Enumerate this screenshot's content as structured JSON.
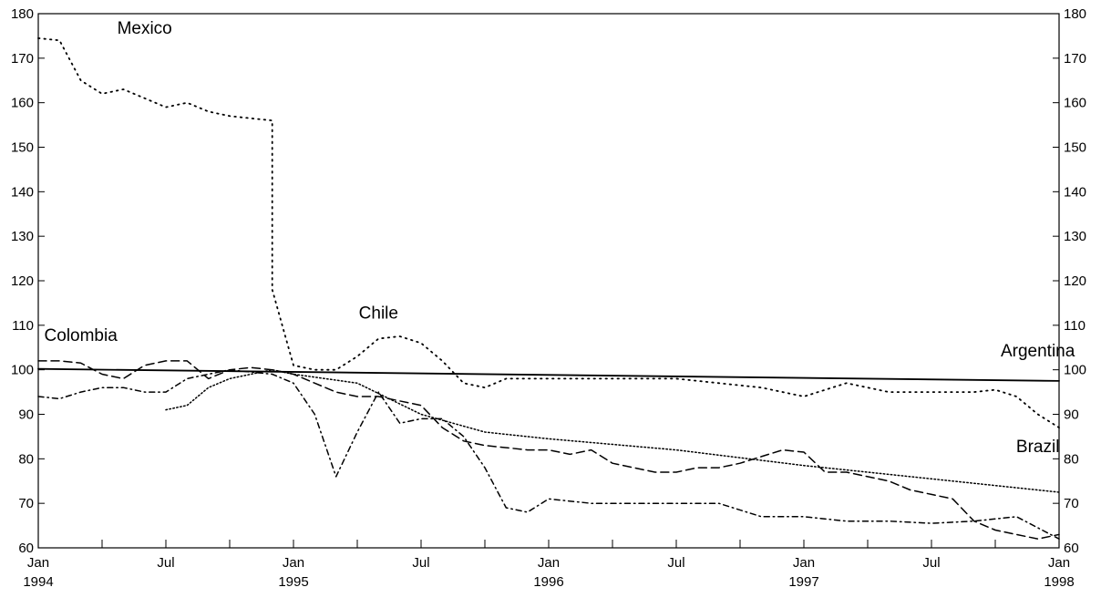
{
  "chart_data": {
    "type": "line",
    "title": "",
    "xlabel": "",
    "ylabel": "",
    "ylim": [
      60,
      180
    ],
    "xlim": [
      "1994-01",
      "1998-01"
    ],
    "yticks": [
      60,
      70,
      80,
      90,
      100,
      110,
      120,
      130,
      140,
      150,
      160,
      170,
      180
    ],
    "ytick_labels": [
      "60",
      "70",
      "80",
      "90",
      "100",
      "110",
      "120",
      "130",
      "140",
      "150",
      "160",
      "170",
      "180"
    ],
    "right_axis": true,
    "xtick_labels": [
      {
        "x": "1994-01",
        "line1": "Jan",
        "line2": "1994"
      },
      {
        "x": "1994-07",
        "line1": "Jul",
        "line2": ""
      },
      {
        "x": "1995-01",
        "line1": "Jan",
        "line2": "1995"
      },
      {
        "x": "1995-07",
        "line1": "Jul",
        "line2": ""
      },
      {
        "x": "1996-01",
        "line1": "Jan",
        "line2": "1996"
      },
      {
        "x": "1996-07",
        "line1": "Jul",
        "line2": ""
      },
      {
        "x": "1997-01",
        "line1": "Jan",
        "line2": "1997"
      },
      {
        "x": "1997-07",
        "line1": "Jul",
        "line2": ""
      },
      {
        "x": "1998-01",
        "line1": "Jan",
        "line2": "1998"
      }
    ],
    "grid": false,
    "series": [
      {
        "name": "Argentina",
        "style": "solid",
        "x": [
          "1994-01",
          "1998-01"
        ],
        "y": [
          100.2,
          97.5
        ]
      },
      {
        "name": "Mexico",
        "style": "dotted-sparse",
        "x": [
          "1994-01",
          "1994-02",
          "1994-03",
          "1994-04",
          "1994-05",
          "1994-06",
          "1994-07",
          "1994-08",
          "1994-09",
          "1994-10",
          "1994-11",
          "1994-12",
          "1994-12",
          "1995-01",
          "1995-02",
          "1995-03",
          "1995-04",
          "1995-05",
          "1995-06",
          "1995-07",
          "1995-08",
          "1995-09",
          "1995-10",
          "1995-11",
          "1995-12",
          "1996-01",
          "1996-03",
          "1996-05",
          "1996-07",
          "1996-09",
          "1996-11",
          "1997-01",
          "1997-03",
          "1997-05",
          "1997-07",
          "1997-09",
          "1997-10",
          "1997-11",
          "1997-12",
          "1998-01"
        ],
        "y": [
          174.5,
          174,
          165,
          162,
          163,
          161,
          159,
          160,
          158,
          157,
          156.5,
          156,
          118,
          101,
          100,
          100,
          103,
          107,
          107.5,
          106,
          102,
          97,
          96,
          98,
          98,
          98,
          98,
          98,
          98,
          97,
          96,
          94,
          97,
          95,
          95,
          95,
          95.5,
          94,
          90,
          87
        ]
      },
      {
        "name": "Chile",
        "style": "dashed",
        "x": [
          "1994-01",
          "1994-02",
          "1994-03",
          "1994-04",
          "1994-05",
          "1994-06",
          "1994-07",
          "1994-08",
          "1994-09",
          "1994-10",
          "1994-11",
          "1994-12",
          "1995-01",
          "1995-02",
          "1995-03",
          "1995-04",
          "1995-05",
          "1995-06",
          "1995-07",
          "1995-08",
          "1995-09",
          "1995-10",
          "1995-11",
          "1995-12",
          "1996-01",
          "1996-02",
          "1996-03",
          "1996-04",
          "1996-05",
          "1996-06",
          "1996-07",
          "1996-08",
          "1996-09",
          "1996-10",
          "1996-11",
          "1996-12",
          "1997-01",
          "1997-02",
          "1997-03",
          "1997-04",
          "1997-05",
          "1997-06",
          "1997-07",
          "1997-08",
          "1997-09",
          "1997-10",
          "1997-11",
          "1997-12",
          "1998-01"
        ],
        "y": [
          102,
          102,
          101.5,
          99,
          98,
          101,
          102,
          102,
          98,
          100,
          100.5,
          100,
          99,
          97,
          95,
          94,
          94,
          93,
          92,
          87,
          84,
          83,
          82.5,
          82,
          82,
          81,
          82,
          79,
          78,
          77,
          77,
          78,
          78,
          79,
          80.5,
          82,
          81.5,
          77,
          77,
          76,
          75,
          73,
          72,
          71,
          66,
          64,
          63,
          62,
          63
        ]
      },
      {
        "name": "Colombia",
        "style": "dash-dot",
        "x": [
          "1994-01",
          "1994-02",
          "1994-03",
          "1994-04",
          "1994-05",
          "1994-06",
          "1994-07",
          "1994-08",
          "1994-09",
          "1994-10",
          "1994-11",
          "1994-12",
          "1995-01",
          "1995-02",
          "1995-03",
          "1995-04",
          "1995-05",
          "1995-06",
          "1995-07",
          "1995-08",
          "1995-09",
          "1995-10",
          "1995-11",
          "1995-12",
          "1996-01",
          "1996-03",
          "1996-05",
          "1996-07",
          "1996-09",
          "1996-11",
          "1997-01",
          "1997-03",
          "1997-05",
          "1997-07",
          "1997-09",
          "1997-11",
          "1998-01"
        ],
        "y": [
          94,
          93.5,
          95,
          96,
          96,
          95,
          95,
          98,
          99,
          100,
          99.5,
          99,
          97,
          90,
          76,
          86,
          95,
          88,
          89,
          89,
          85,
          78,
          69,
          68,
          71,
          70,
          70,
          70,
          70,
          67,
          67,
          66,
          66,
          65.5,
          66,
          67,
          62
        ]
      },
      {
        "name": "Brazil",
        "style": "dotted-dense",
        "x": [
          "1994-07",
          "1994-08",
          "1994-09",
          "1994-10",
          "1994-11",
          "1994-12",
          "1995-01",
          "1995-04",
          "1995-07",
          "1995-10",
          "1996-01",
          "1996-07",
          "1997-01",
          "1997-07",
          "1998-01"
        ],
        "y": [
          91,
          92,
          96,
          98,
          99,
          100,
          99,
          97,
          90,
          86,
          84.5,
          82,
          78.5,
          75.5,
          72.5
        ]
      }
    ],
    "annotations": [
      {
        "text": "Mexico",
        "x": "1994-06",
        "y": 175.5
      },
      {
        "text": "Chile",
        "x": "1995-05",
        "y": 111.5
      },
      {
        "text": "Colombia",
        "x": "1994-03",
        "y": 106.5
      },
      {
        "text": "Argentina",
        "x": "1997-12",
        "y": 103
      },
      {
        "text": "Brazil",
        "x": "1997-12",
        "y": 81.5
      }
    ]
  }
}
